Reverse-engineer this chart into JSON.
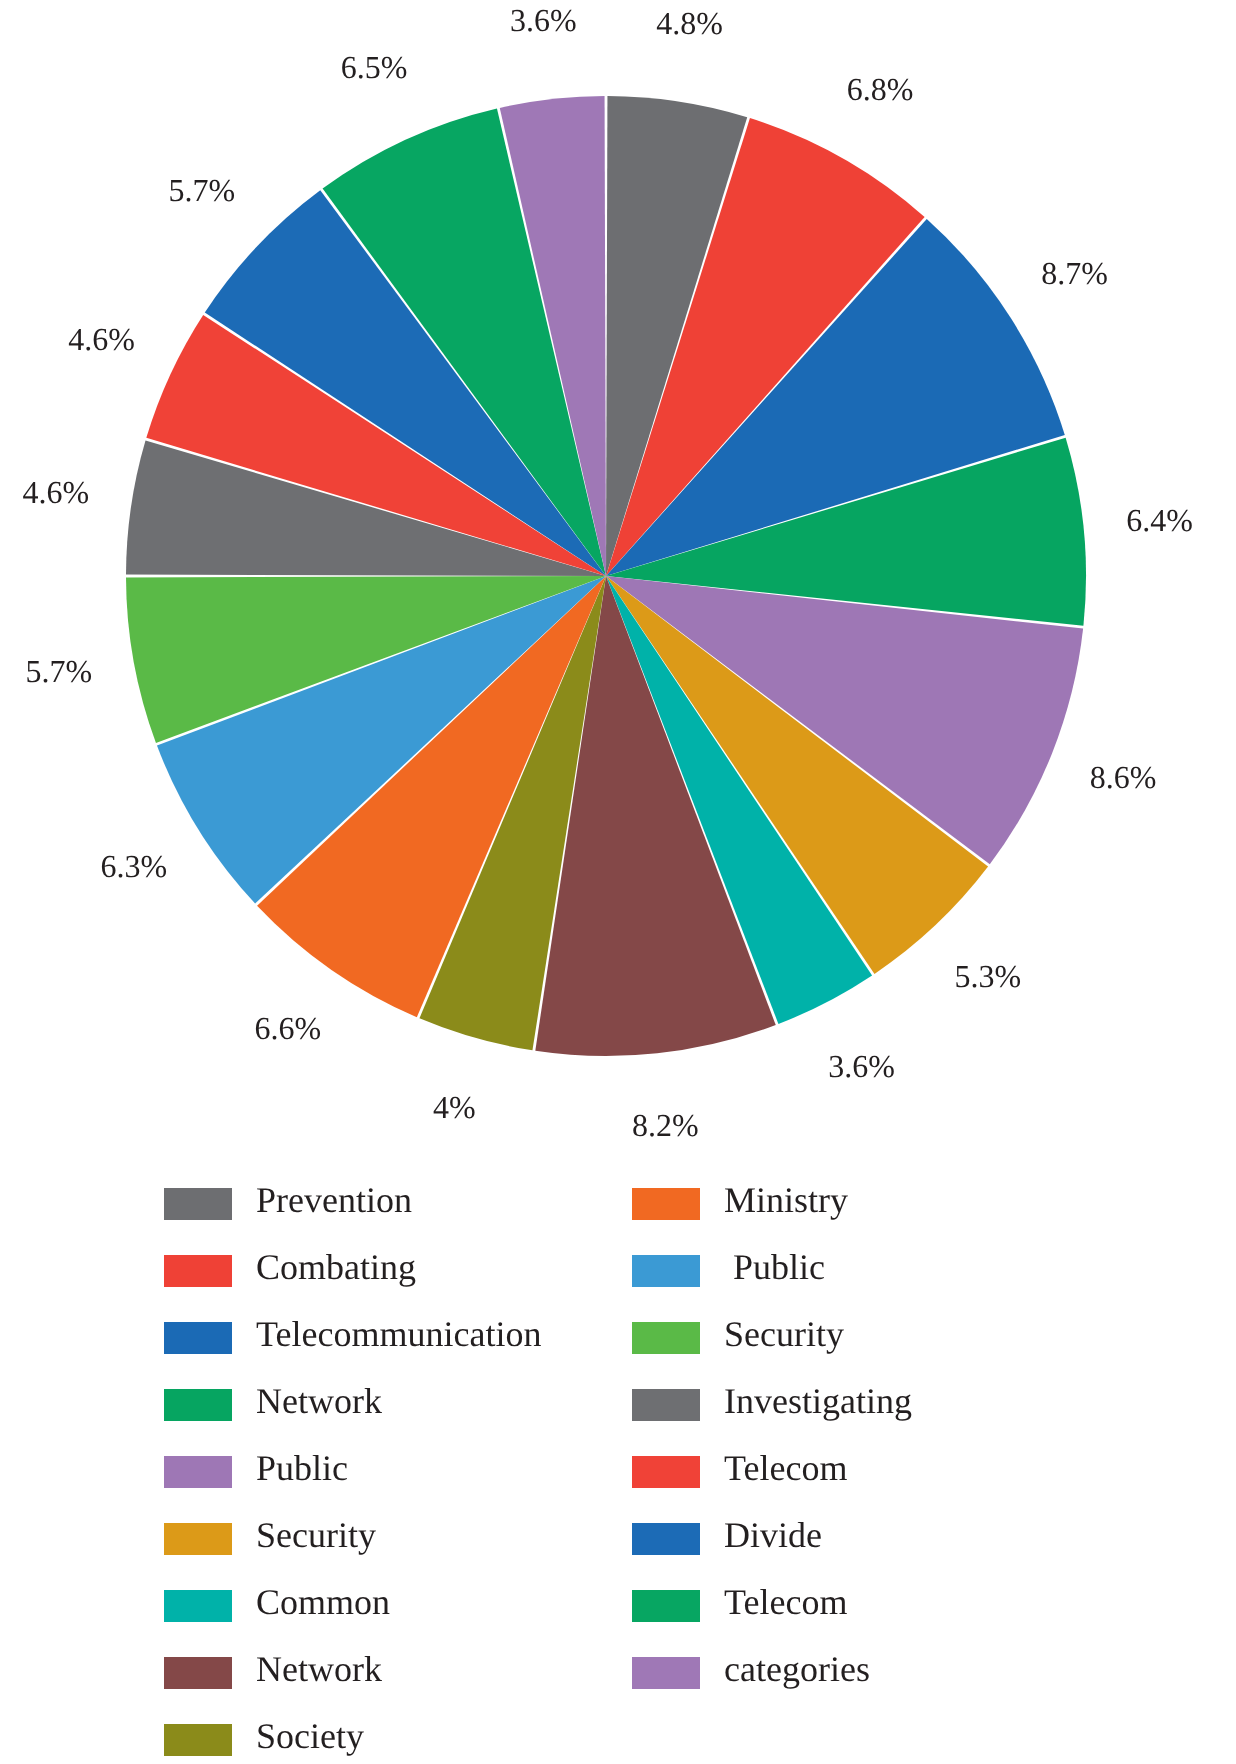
{
  "chart_data": {
    "type": "pie",
    "categories": [
      "Prevention",
      "Combating",
      "Telecommunication",
      "Network",
      "Public",
      "Security",
      "Common",
      "Network",
      "Society",
      "Ministry",
      " Public",
      "Security",
      "Investigating",
      "Telecom",
      "Divide",
      "Telecom",
      "categories"
    ],
    "values": [
      4.8,
      6.8,
      8.7,
      6.4,
      8.6,
      5.3,
      3.6,
      8.2,
      4,
      6.6,
      6.3,
      5.7,
      4.6,
      4.6,
      5.7,
      6.5,
      3.6
    ],
    "value_labels": [
      "4.8%",
      "6.8%",
      "8.7%",
      "6.4%",
      "8.6%",
      "5.3%",
      "3.6%",
      "8.2%",
      "4%",
      "6.6%",
      "6.3%",
      "5.7%",
      "4.6%",
      "4.6%",
      "5.7%",
      "6.5%",
      "3.6%"
    ],
    "colors": [
      "#6d6e71",
      "#ef4136",
      "#1b6ab5",
      "#06a561",
      "#9e77b5",
      "#dc9a18",
      "#00b2a9",
      "#844848",
      "#8b8b1a",
      "#f16922",
      "#3b9ad4",
      "#5aba47",
      "#6e6f72",
      "#f04237",
      "#1c6bb6",
      "#07a662",
      "#9f78b6"
    ],
    "legend": "bottom"
  }
}
